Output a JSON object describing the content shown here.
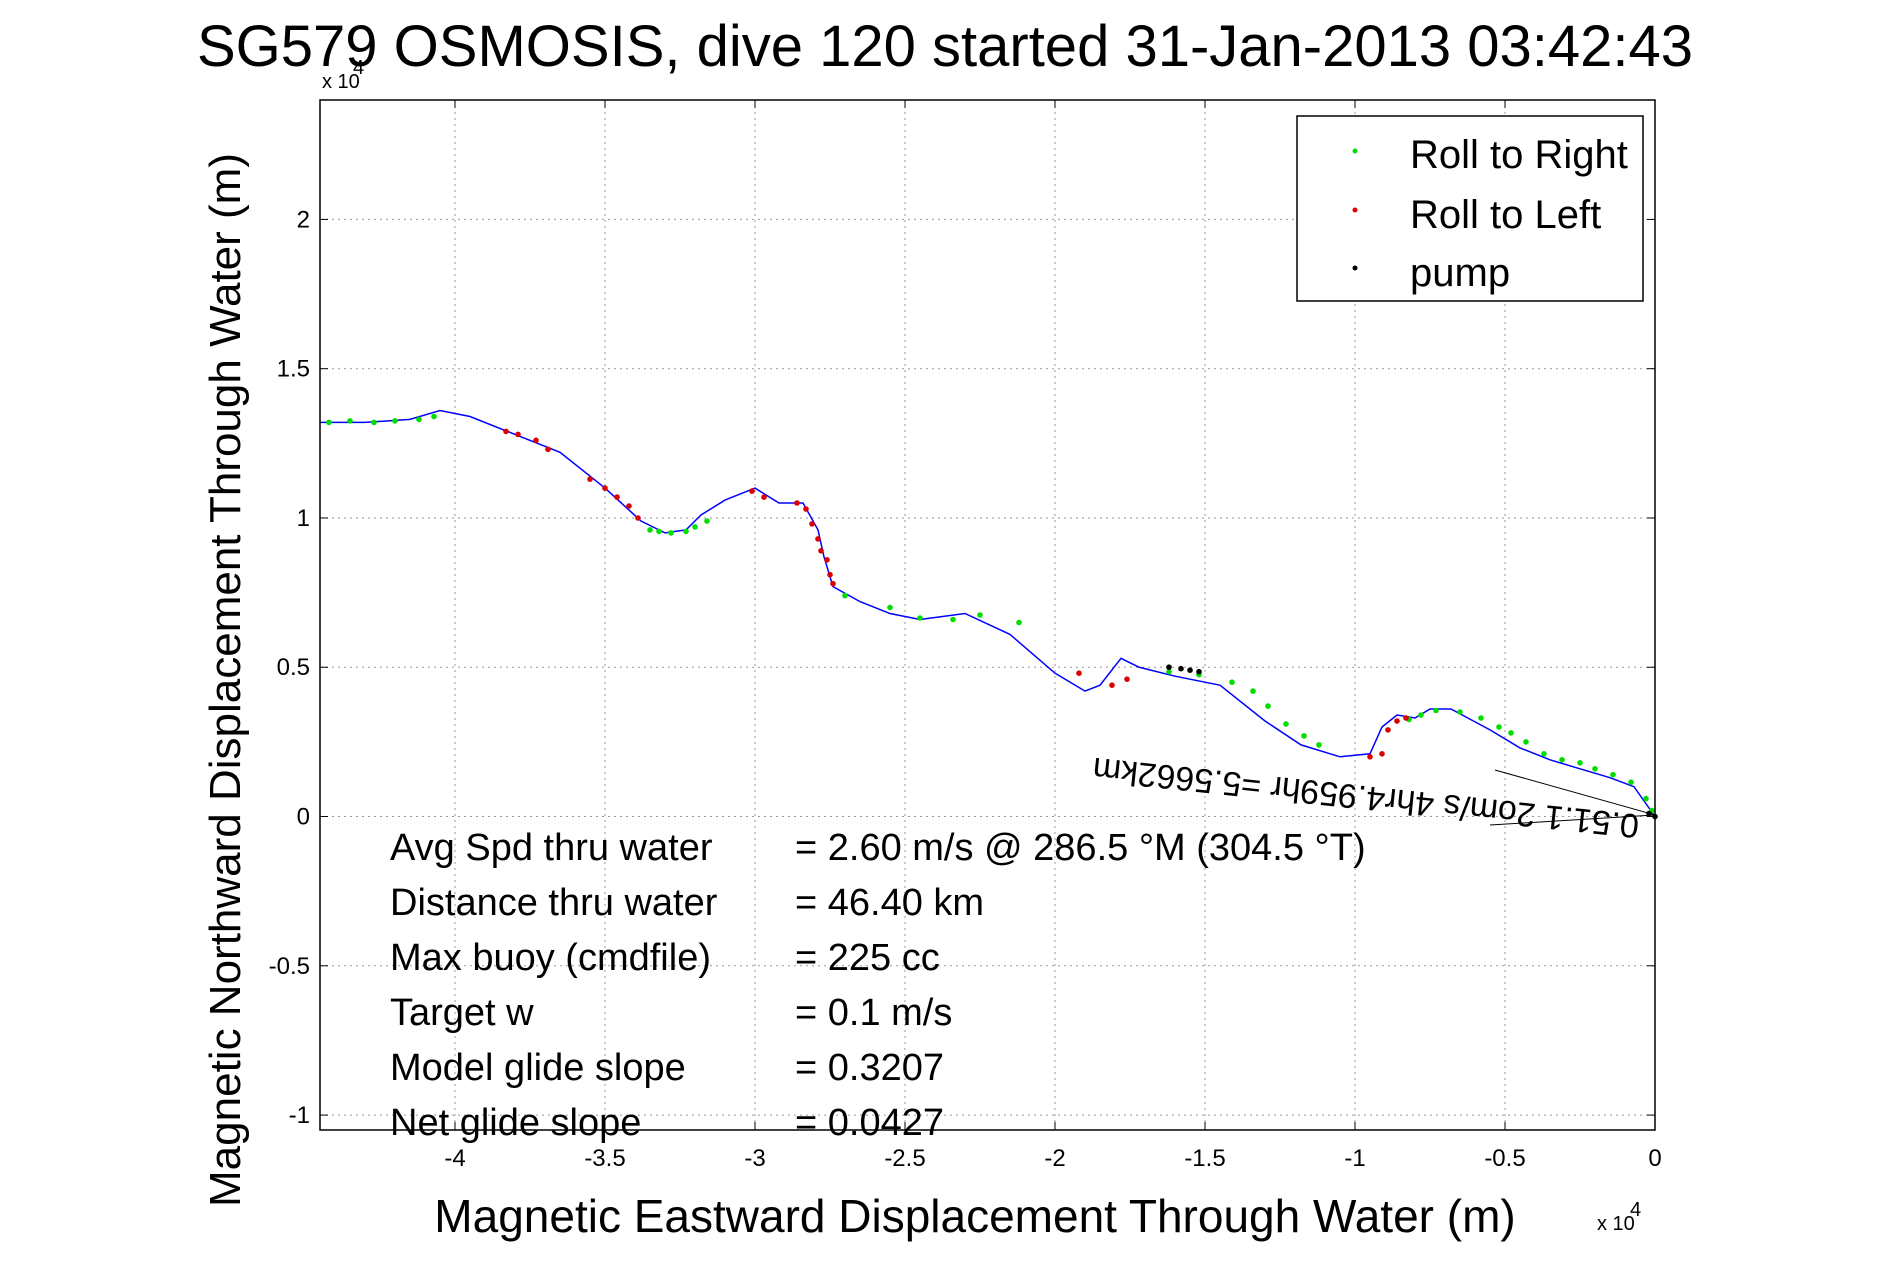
{
  "chart_data": {
    "type": "line",
    "title": "SG579 OSMOSIS, dive 120 started 31-Jan-2013 03:42:43",
    "xlabel": "Magnetic Eastward Displacement Through Water (m)",
    "ylabel": "Magnetic Northward Displacement Through Water (m)",
    "x_multiplier": "x 10",
    "x_exponent": "4",
    "y_multiplier": "x 10",
    "y_exponent": "4",
    "xlim": [
      -44500,
      0
    ],
    "ylim": [
      -10500,
      24000
    ],
    "xticks": [
      -40000,
      -35000,
      -30000,
      -25000,
      -20000,
      -15000,
      -10000,
      -5000,
      0
    ],
    "xtick_labels": [
      "-4",
      "-3.5",
      "-3",
      "-2.5",
      "-2",
      "-1.5",
      "-1",
      "-0.5",
      "0"
    ],
    "yticks": [
      -10000,
      -5000,
      0,
      5000,
      10000,
      15000,
      20000
    ],
    "ytick_labels": [
      "-1",
      "-0.5",
      "0",
      "0.5",
      "1",
      "1.5",
      "2"
    ],
    "grid": true,
    "legend_position": "top-right",
    "track_color": "#0000ff",
    "series": [
      {
        "name": "track",
        "color": "#0000ff",
        "x": [
          -44500,
          -43000,
          -41500,
          -40500,
          -39500,
          -38000,
          -36500,
          -35000,
          -33800,
          -33000,
          -32300,
          -31800,
          -31000,
          -30000,
          -29200,
          -28400,
          -27900,
          -27700,
          -27400,
          -26500,
          -25500,
          -24500,
          -23000,
          -21500,
          -20000,
          -19000,
          -18500,
          -17800,
          -17600,
          -17200,
          -16000,
          -14500,
          -13000,
          -11800,
          -10500,
          -9500,
          -9100,
          -8600,
          -8000,
          -7500,
          -6800,
          -5500,
          -4500,
          -3500,
          -2500,
          -1500,
          -700,
          0
        ],
        "y": [
          13200,
          13200,
          13300,
          13600,
          13400,
          12800,
          12200,
          11000,
          9900,
          9500,
          9600,
          10100,
          10600,
          11000,
          10500,
          10500,
          9600,
          8700,
          7700,
          7200,
          6800,
          6600,
          6800,
          6100,
          4800,
          4200,
          4400,
          5300,
          5200,
          5000,
          4700,
          4400,
          3200,
          2400,
          2000,
          2100,
          3000,
          3400,
          3300,
          3600,
          3600,
          2900,
          2300,
          1900,
          1600,
          1300,
          1000,
          0
        ]
      },
      {
        "name": "Roll to Right",
        "color": "#00dd00",
        "x": [
          -44200,
          -43500,
          -42700,
          -42000,
          -41200,
          -40700,
          -33500,
          -33200,
          -32800,
          -32300,
          -32000,
          -31600,
          -27000,
          -25500,
          -24500,
          -23400,
          -22500,
          -21200,
          -16200,
          -15200,
          -14100,
          -13400,
          -12900,
          -12300,
          -11700,
          -11200,
          -8200,
          -7800,
          -7300,
          -6500,
          -5800,
          -5200,
          -4800,
          -4300,
          -3700,
          -3100,
          -2500,
          -2000,
          -1400,
          -800,
          -300,
          -100
        ],
        "y": [
          13200,
          13250,
          13200,
          13250,
          13300,
          13400,
          9600,
          9550,
          9500,
          9550,
          9700,
          9900,
          7400,
          7000,
          6650,
          6600,
          6750,
          6500,
          4850,
          4750,
          4500,
          4200,
          3700,
          3100,
          2700,
          2400,
          3250,
          3400,
          3550,
          3500,
          3300,
          3000,
          2800,
          2500,
          2100,
          1900,
          1800,
          1600,
          1400,
          1150,
          600,
          200
        ]
      },
      {
        "name": "Roll to Left",
        "color": "#dd0000",
        "x": [
          -38300,
          -37900,
          -37300,
          -36900,
          -35500,
          -35000,
          -34600,
          -34200,
          -33900,
          -30100,
          -29700,
          -28600,
          -28300,
          -28100,
          -27900,
          -27800,
          -27600,
          -27500,
          -27400,
          -19200,
          -18100,
          -17600,
          -9500,
          -9100,
          -8900,
          -8600,
          -8300
        ],
        "y": [
          12900,
          12800,
          12600,
          12300,
          11300,
          11000,
          10700,
          10400,
          10000,
          10900,
          10700,
          10500,
          10300,
          9800,
          9300,
          8900,
          8600,
          8100,
          7800,
          4800,
          4400,
          4600,
          2000,
          2100,
          2900,
          3200,
          3300
        ]
      },
      {
        "name": "pump",
        "color": "#000000",
        "x": [
          -16200,
          -15800,
          -15500,
          -15200,
          -200,
          0
        ],
        "y": [
          5000,
          4950,
          4900,
          4850,
          100,
          0
        ]
      }
    ],
    "annotation": "0.51.1 2om/s 4hr4.959hr =5.5662km",
    "stats": [
      {
        "label": "Avg Spd thru water",
        "value": "=  2.60 m/s @ 286.5 °M (304.5 °T)"
      },
      {
        "label": "Distance thru water",
        "value": "= 46.40 km"
      },
      {
        "label": "Max buoy (cmdfile)",
        "value": "= 225 cc"
      },
      {
        "label": "Target w",
        "value": "= 0.1 m/s"
      },
      {
        "label": "Model glide slope",
        "value": "= 0.3207"
      },
      {
        "label": "Net glide slope",
        "value": "= 0.0427"
      }
    ]
  }
}
